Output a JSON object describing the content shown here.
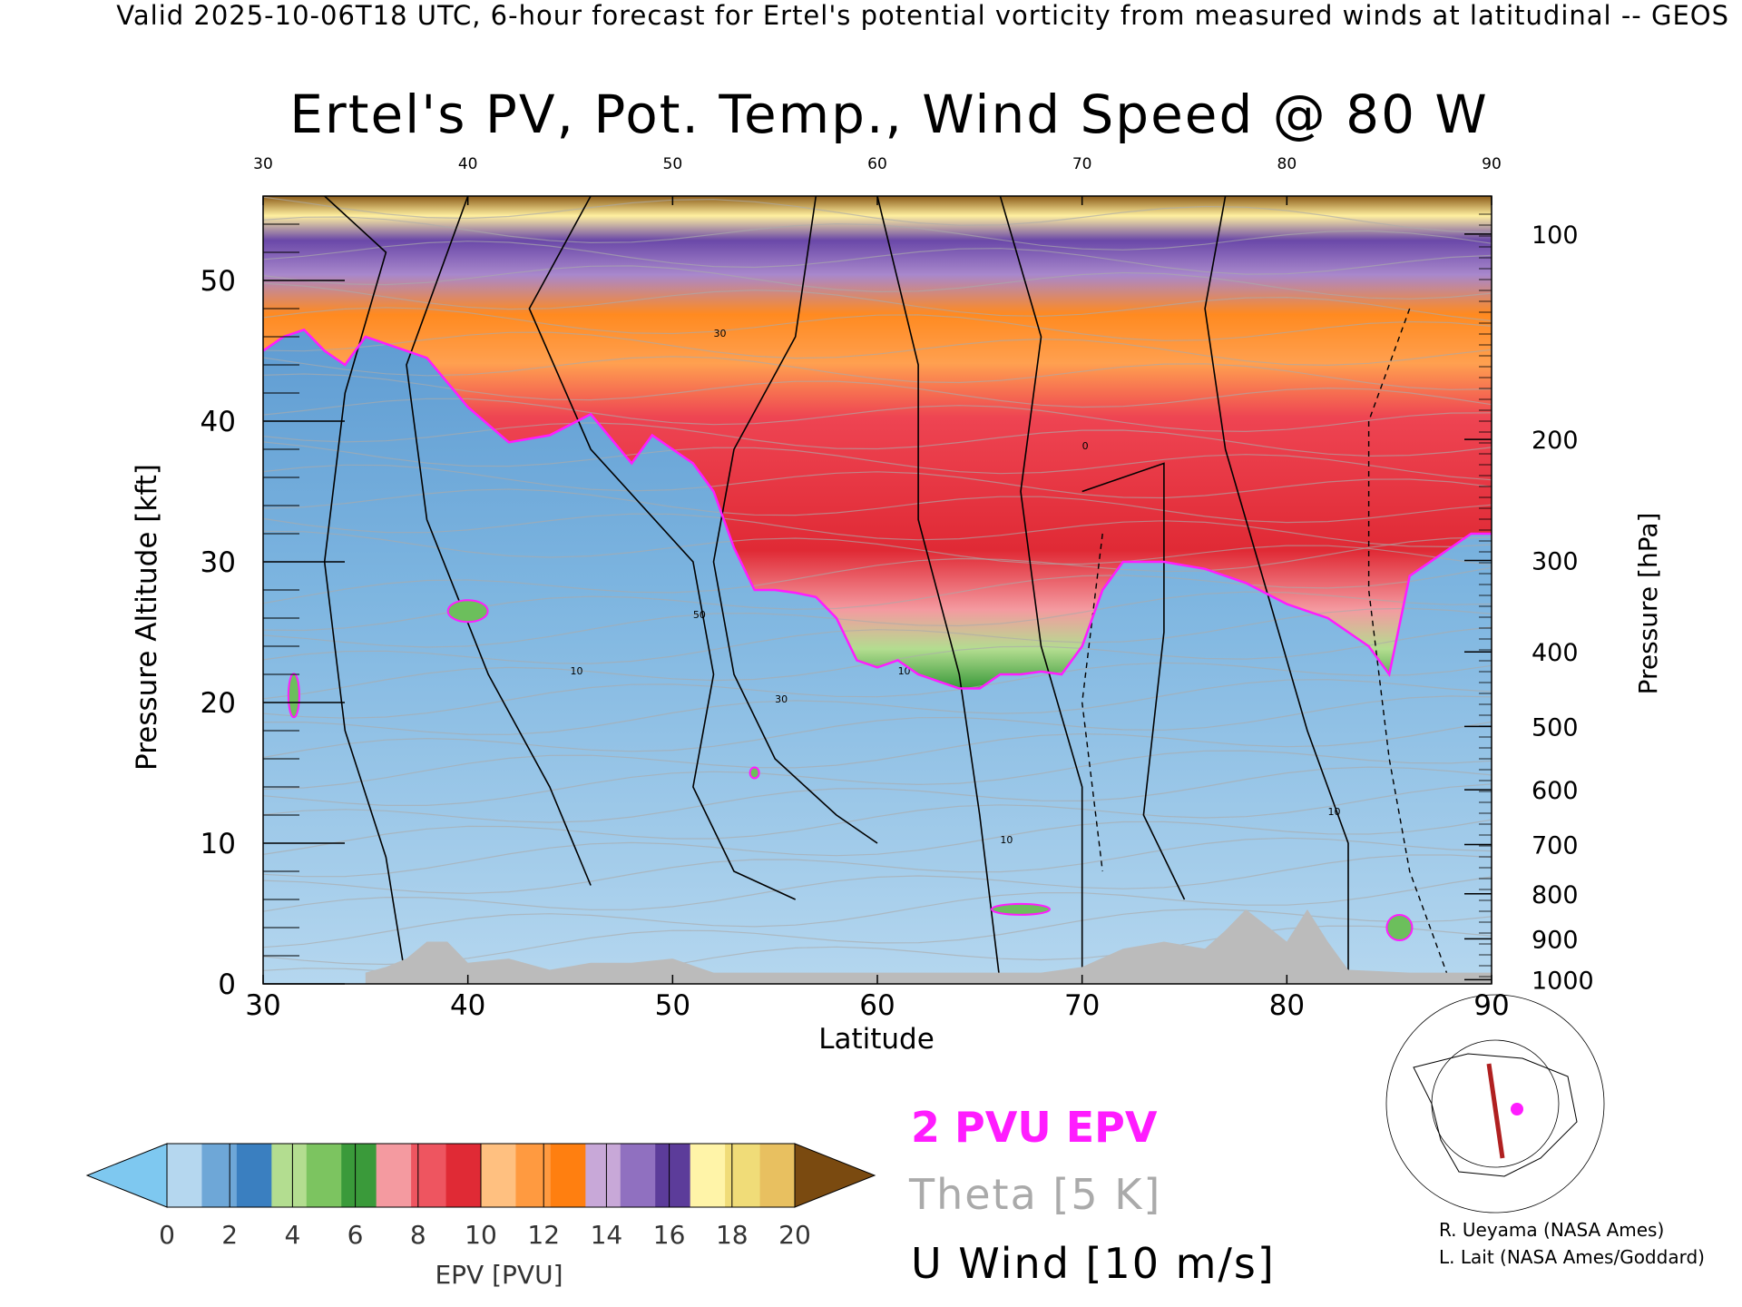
{
  "header": {
    "line": "Valid 2025-10-06T18 UTC, 6-hour forecast for Ertel's potential vorticity from measured winds at latitudinal -- GEOS"
  },
  "chart_data": {
    "type": "heatmap",
    "title": "Ertel's PV, Pot. Temp., Wind Speed @ 80 W",
    "xlabel": "Latitude",
    "ylabel": "Pressure Altitude [kft]",
    "y2label": "Pressure [hPa]",
    "xlim": [
      30,
      90
    ],
    "ylim": [
      0,
      56
    ],
    "x_ticks": [
      30,
      40,
      50,
      60,
      70,
      80,
      90
    ],
    "y_ticks": [
      0,
      10,
      20,
      30,
      40,
      50
    ],
    "pressure_ticks": [
      {
        "label": "100",
        "kft": 53.3
      },
      {
        "label": "200",
        "kft": 38.7
      },
      {
        "label": "300",
        "kft": 30.1
      },
      {
        "label": "400",
        "kft": 23.6
      },
      {
        "label": "500",
        "kft": 18.3
      },
      {
        "label": "600",
        "kft": 13.8
      },
      {
        "label": "700",
        "kft": 9.9
      },
      {
        "label": "800",
        "kft": 6.4
      },
      {
        "label": "900",
        "kft": 3.2
      },
      {
        "label": "1000",
        "kft": 0.3
      }
    ],
    "dynamical_tropopause_2pvu": {
      "lat": [
        30,
        31,
        32,
        33,
        34,
        35,
        36,
        38,
        40,
        42,
        44,
        46,
        48,
        49,
        50,
        51,
        52,
        53,
        54,
        55,
        56,
        57,
        58,
        59,
        60,
        61,
        62,
        63,
        64,
        65,
        66,
        67,
        68,
        69,
        70,
        71,
        72,
        74,
        76,
        78,
        80,
        81,
        82,
        83,
        84,
        85,
        86,
        87,
        88,
        89,
        90
      ],
      "kft": [
        45,
        46,
        46.5,
        45,
        44,
        46,
        45.5,
        44.5,
        41,
        38.5,
        39,
        40.5,
        37,
        39,
        38,
        37,
        35,
        31,
        28,
        28,
        27.8,
        27.5,
        26,
        23,
        22.5,
        23,
        22,
        21.5,
        21,
        21,
        22,
        22,
        22.2,
        22,
        24,
        28,
        30,
        30,
        29.5,
        28.5,
        27,
        26.5,
        26,
        25,
        24,
        22,
        29,
        30,
        31,
        32,
        32
      ]
    },
    "epv_colorbar": {
      "label": "EPV [PVU]",
      "ticks": [
        0,
        2,
        4,
        6,
        8,
        10,
        12,
        14,
        16,
        18,
        20
      ],
      "colors": [
        "#b5d7ef",
        "#6ea7d7",
        "#3a7fc0",
        "#b3dd90",
        "#7cc460",
        "#3a9a3a",
        "#f49aa0",
        "#ee5560",
        "#e02a35",
        "#ffc080",
        "#ff9a40",
        "#ff7f10",
        "#c8a8d8",
        "#9070c0",
        "#5c3c9a",
        "#fff4a8",
        "#f0dc78",
        "#e8c060"
      ],
      "under_color": "#7ec8f0",
      "over_color": "#7a4a10"
    },
    "legend": {
      "pvu": "2 PVU EPV",
      "theta": "Theta [5 K]",
      "uwind": "U Wind [10 m/s]"
    },
    "u_wind_labels": [
      "0",
      "10",
      "30",
      "50"
    ],
    "colors": {
      "pvu_line": "#ff1cff",
      "theta_line": "#aaaaaa",
      "uwind_line": "#000000",
      "terrain": "#bbbbbb"
    }
  },
  "credits": {
    "line1": "R. Ueyama (NASA Ames)",
    "line2": "L. Lait (NASA Ames/Goddard)"
  }
}
